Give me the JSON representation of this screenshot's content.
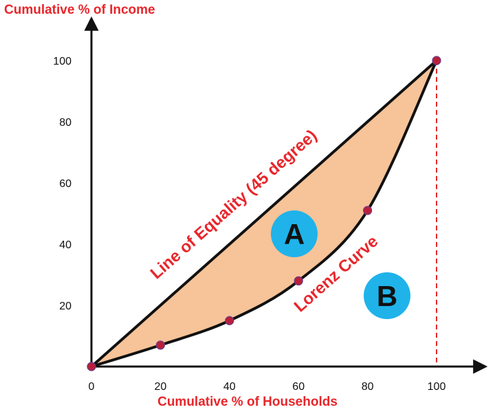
{
  "chart_data": {
    "type": "line",
    "ylabel": "Cumulative % of Income",
    "xlabel": "Cumulative % of Households",
    "xlim": [
      0,
      100
    ],
    "ylim": [
      0,
      100
    ],
    "x_ticks": [
      "0",
      "20",
      "40",
      "60",
      "80",
      "100"
    ],
    "y_ticks": [
      "20",
      "40",
      "60",
      "80",
      "100"
    ],
    "series": [
      {
        "name": "Line of Equality (45 degree)",
        "x": [
          0,
          100
        ],
        "y": [
          0,
          100
        ]
      },
      {
        "name": "Lorenz Curve",
        "x": [
          0,
          20,
          40,
          60,
          80,
          100
        ],
        "y": [
          0,
          7,
          15,
          28,
          51,
          100
        ]
      }
    ],
    "regions": [
      {
        "label": "A"
      },
      {
        "label": "B"
      }
    ],
    "colors": {
      "axis": "#111111",
      "curve": "#111111",
      "fill": "#f7c398",
      "point": "#b8203a",
      "label": "#e8262b",
      "badge": "#1fb3ea",
      "guide": "#e8262b"
    }
  }
}
